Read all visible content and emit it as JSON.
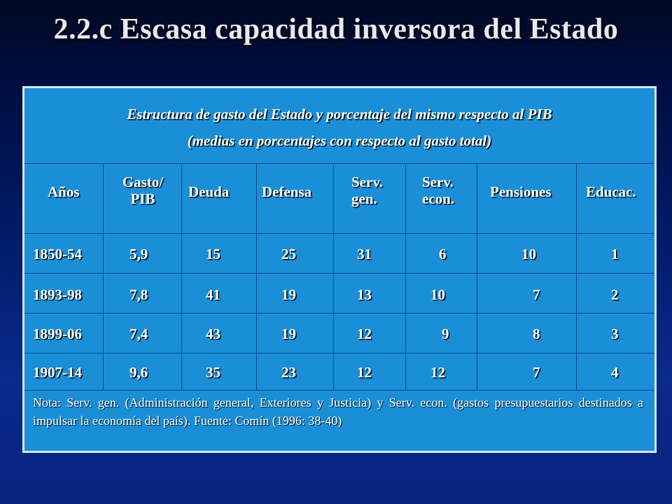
{
  "slide": {
    "title": "2.2.c Escasa capacidad inversora del Estado"
  },
  "table": {
    "caption_line1": "Estructura de gasto del Estado y porcentaje del mismo respecto al PIB",
    "caption_line2": "(medias en porcentajes con respecto al gasto total)",
    "headers": [
      {
        "line1": "Años",
        "line2": ""
      },
      {
        "line1": "Gasto/",
        "line2": "PIB"
      },
      {
        "line1": "Deuda",
        "line2": ""
      },
      {
        "line1": "Defensa",
        "line2": ""
      },
      {
        "line1": "Serv.",
        "line2": "gen."
      },
      {
        "line1": "Serv.",
        "line2": "econ."
      },
      {
        "line1": "Pensiones",
        "line2": ""
      },
      {
        "line1": "Educac.",
        "line2": ""
      }
    ],
    "rows": [
      [
        "1850-54",
        "5,9",
        "15",
        "25",
        "31",
        "6",
        "10",
        "1"
      ],
      [
        "1893-98",
        "7,8",
        "41",
        "19",
        "13",
        "10",
        "7",
        "2"
      ],
      [
        "1899-06",
        "7,4",
        "43",
        "19",
        "12",
        "9",
        "8",
        "3"
      ],
      [
        "1907-14",
        "9,6",
        "35",
        "23",
        "12",
        "12",
        "7",
        "4"
      ]
    ],
    "note": "Nota: Serv. gen. (Administración general, Exteriores y Justicia) y Serv. econ. (gastos presupuestarios destinados a impulsar la economía del país). Fuente: Comín (1996: 38-40)"
  }
}
